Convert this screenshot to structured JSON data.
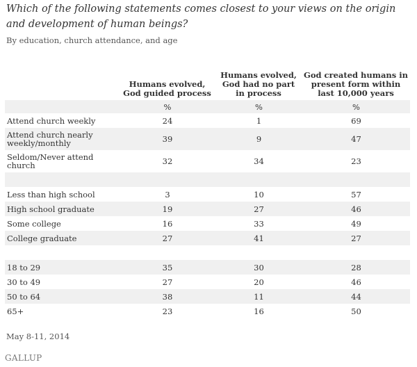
{
  "title": "Which of the following statements comes closest to your views on the origin and development of human beings?",
  "subtitle": "By education, church attendance, and age",
  "date_note": "May 8-11, 2014",
  "logo": "GALLUP",
  "chart_data": {
    "type": "table",
    "title": "Which of the following statements comes closest to your views on the origin and development of human beings?",
    "subtitle": "By education, church attendance, and age",
    "columns": [
      "Humans evolved, God guided process",
      "Humans evolved, God had no part in process",
      "God created humans in present form within last 10,000 years"
    ],
    "unit_row": [
      "%",
      "%",
      "%"
    ],
    "groups": [
      {
        "rows": [
          {
            "label": "Attend church weekly",
            "values": [
              "24",
              "1",
              "69"
            ]
          },
          {
            "label": "Attend church nearly weekly/monthly",
            "values": [
              "39",
              "9",
              "47"
            ]
          },
          {
            "label": "Seldom/Never attend church",
            "values": [
              "32",
              "34",
              "23"
            ]
          }
        ]
      },
      {
        "rows": [
          {
            "label": "Less than high school",
            "values": [
              "3",
              "10",
              "57"
            ]
          },
          {
            "label": "High school graduate",
            "values": [
              "19",
              "27",
              "46"
            ]
          },
          {
            "label": "Some college",
            "values": [
              "16",
              "33",
              "49"
            ]
          },
          {
            "label": "College graduate",
            "values": [
              "27",
              "41",
              "27"
            ]
          }
        ]
      },
      {
        "rows": [
          {
            "label": "18 to 29",
            "values": [
              "35",
              "30",
              "28"
            ]
          },
          {
            "label": "30 to 49",
            "values": [
              "27",
              "20",
              "46"
            ]
          },
          {
            "label": "50 to 64",
            "values": [
              "38",
              "11",
              "44"
            ]
          },
          {
            "label": "65+",
            "values": [
              "23",
              "16",
              "50"
            ]
          }
        ]
      }
    ]
  }
}
